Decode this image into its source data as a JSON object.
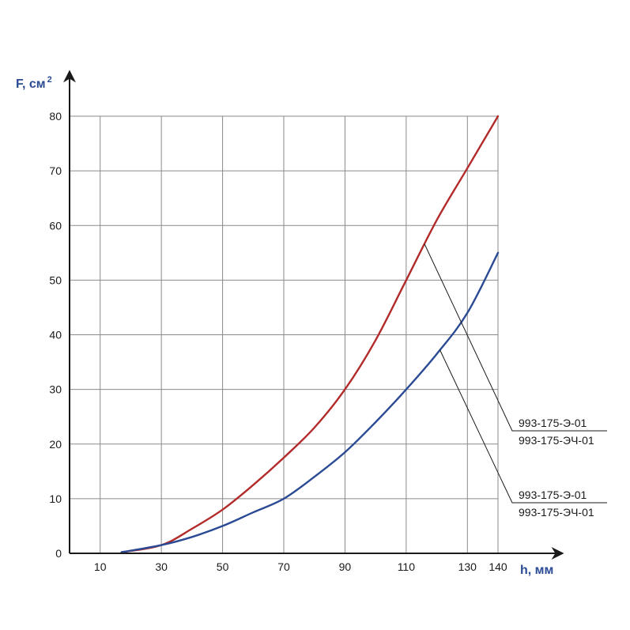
{
  "chart_data": {
    "type": "line",
    "xlabel": "h, мм",
    "ylabel": "F, см",
    "ylabel_sup": "2",
    "xlim": [
      0,
      140
    ],
    "ylim": [
      0,
      80
    ],
    "grid": true,
    "x_ticks": [
      10,
      30,
      50,
      70,
      90,
      110,
      130,
      140
    ],
    "y_ticks": [
      0,
      10,
      20,
      30,
      40,
      50,
      60,
      70,
      80
    ],
    "series": [
      {
        "color": "#b22a2a",
        "x": [
          17,
          30,
          40,
          50,
          60,
          70,
          80,
          90,
          100,
          110,
          120,
          130,
          140
        ],
        "y": [
          0.2,
          1.5,
          4.5,
          8,
          12.5,
          17.5,
          23,
          30,
          39,
          50,
          61,
          70.5,
          80
        ]
      },
      {
        "color": "#2a4a94",
        "x": [
          17,
          30,
          40,
          50,
          60,
          70,
          80,
          90,
          100,
          110,
          120,
          130,
          140
        ],
        "y": [
          0.2,
          1.5,
          3,
          5,
          7.5,
          10,
          14,
          18.5,
          24,
          30,
          36.5,
          44,
          55
        ]
      }
    ],
    "callouts": [
      {
        "lines": [
          "993-175-Э-01",
          "993-175-ЭЧ-01"
        ],
        "series_index": 0,
        "anchor_x": 116
      },
      {
        "lines": [
          "993-175-Э-01",
          "993-175-ЭЧ-01"
        ],
        "series_index": 1,
        "anchor_x": 121
      }
    ]
  }
}
